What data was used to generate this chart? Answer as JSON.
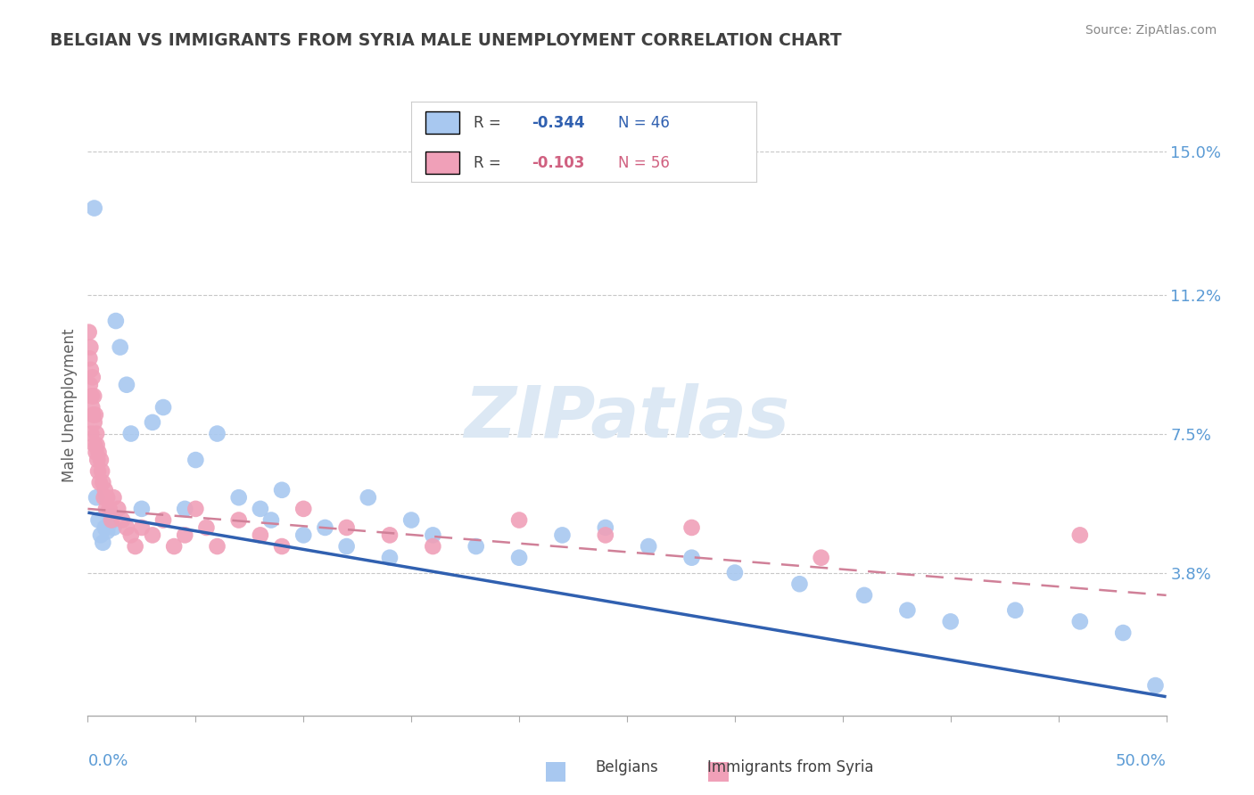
{
  "title": "BELGIAN VS IMMIGRANTS FROM SYRIA MALE UNEMPLOYMENT CORRELATION CHART",
  "source": "Source: ZipAtlas.com",
  "ylabel": "Male Unemployment",
  "ytick_values": [
    3.8,
    7.5,
    11.2,
    15.0
  ],
  "ytick_labels": [
    "3.8%",
    "7.5%",
    "11.2%",
    "15.0%"
  ],
  "xlim": [
    0.0,
    50.0
  ],
  "ylim": [
    0.0,
    16.5
  ],
  "belgians_R": -0.344,
  "belgians_N": 46,
  "syria_R": -0.103,
  "syria_N": 56,
  "belgian_color": "#a8c8f0",
  "syria_color": "#f0a0b8",
  "belgian_line_color": "#3060b0",
  "syria_line_color": "#d08098",
  "title_color": "#404040",
  "axis_label_color": "#5b9bd5",
  "grid_color": "#c8c8c8",
  "watermark": "ZIPatlas",
  "watermark_color": "#dce8f4",
  "belgians_x": [
    0.3,
    0.4,
    0.5,
    0.6,
    0.7,
    0.8,
    0.9,
    1.0,
    1.1,
    1.2,
    1.3,
    1.5,
    1.8,
    2.0,
    2.5,
    3.0,
    3.5,
    4.5,
    5.0,
    6.0,
    7.0,
    8.0,
    8.5,
    9.0,
    10.0,
    11.0,
    12.0,
    13.0,
    14.0,
    15.0,
    16.0,
    18.0,
    20.0,
    22.0,
    24.0,
    26.0,
    28.0,
    30.0,
    33.0,
    36.0,
    38.0,
    40.0,
    43.0,
    46.0,
    48.0,
    49.5
  ],
  "belgians_y": [
    13.5,
    5.8,
    5.2,
    4.8,
    4.6,
    5.0,
    4.9,
    5.1,
    5.3,
    5.0,
    10.5,
    9.8,
    8.8,
    7.5,
    5.5,
    7.8,
    8.2,
    5.5,
    6.8,
    7.5,
    5.8,
    5.5,
    5.2,
    6.0,
    4.8,
    5.0,
    4.5,
    5.8,
    4.2,
    5.2,
    4.8,
    4.5,
    4.2,
    4.8,
    5.0,
    4.5,
    4.2,
    3.8,
    3.5,
    3.2,
    2.8,
    2.5,
    2.8,
    2.5,
    2.2,
    0.8
  ],
  "syria_x": [
    0.05,
    0.08,
    0.1,
    0.12,
    0.14,
    0.16,
    0.18,
    0.2,
    0.22,
    0.25,
    0.28,
    0.3,
    0.32,
    0.35,
    0.38,
    0.4,
    0.42,
    0.45,
    0.48,
    0.5,
    0.55,
    0.6,
    0.65,
    0.7,
    0.75,
    0.8,
    0.85,
    0.9,
    1.0,
    1.1,
    1.2,
    1.4,
    1.6,
    1.8,
    2.0,
    2.2,
    2.5,
    3.0,
    3.5,
    4.0,
    4.5,
    5.0,
    5.5,
    6.0,
    7.0,
    8.0,
    9.0,
    10.0,
    12.0,
    14.0,
    16.0,
    20.0,
    24.0,
    28.0,
    34.0,
    46.0
  ],
  "syria_y": [
    10.2,
    9.5,
    8.8,
    9.8,
    9.2,
    7.5,
    8.5,
    8.2,
    9.0,
    8.0,
    8.5,
    7.8,
    7.2,
    8.0,
    7.0,
    7.5,
    7.2,
    6.8,
    6.5,
    7.0,
    6.2,
    6.8,
    6.5,
    6.2,
    5.8,
    6.0,
    5.5,
    5.8,
    5.5,
    5.2,
    5.8,
    5.5,
    5.2,
    5.0,
    4.8,
    4.5,
    5.0,
    4.8,
    5.2,
    4.5,
    4.8,
    5.5,
    5.0,
    4.5,
    5.2,
    4.8,
    4.5,
    5.5,
    5.0,
    4.8,
    4.5,
    5.2,
    4.8,
    5.0,
    4.2,
    4.8
  ],
  "belgian_trend_x0": 0.0,
  "belgian_trend_y0": 5.4,
  "belgian_trend_x1": 50.0,
  "belgian_trend_y1": 0.5,
  "syria_trend_x0": 0.0,
  "syria_trend_y0": 5.5,
  "syria_trend_x1": 50.0,
  "syria_trend_y1": 3.2
}
